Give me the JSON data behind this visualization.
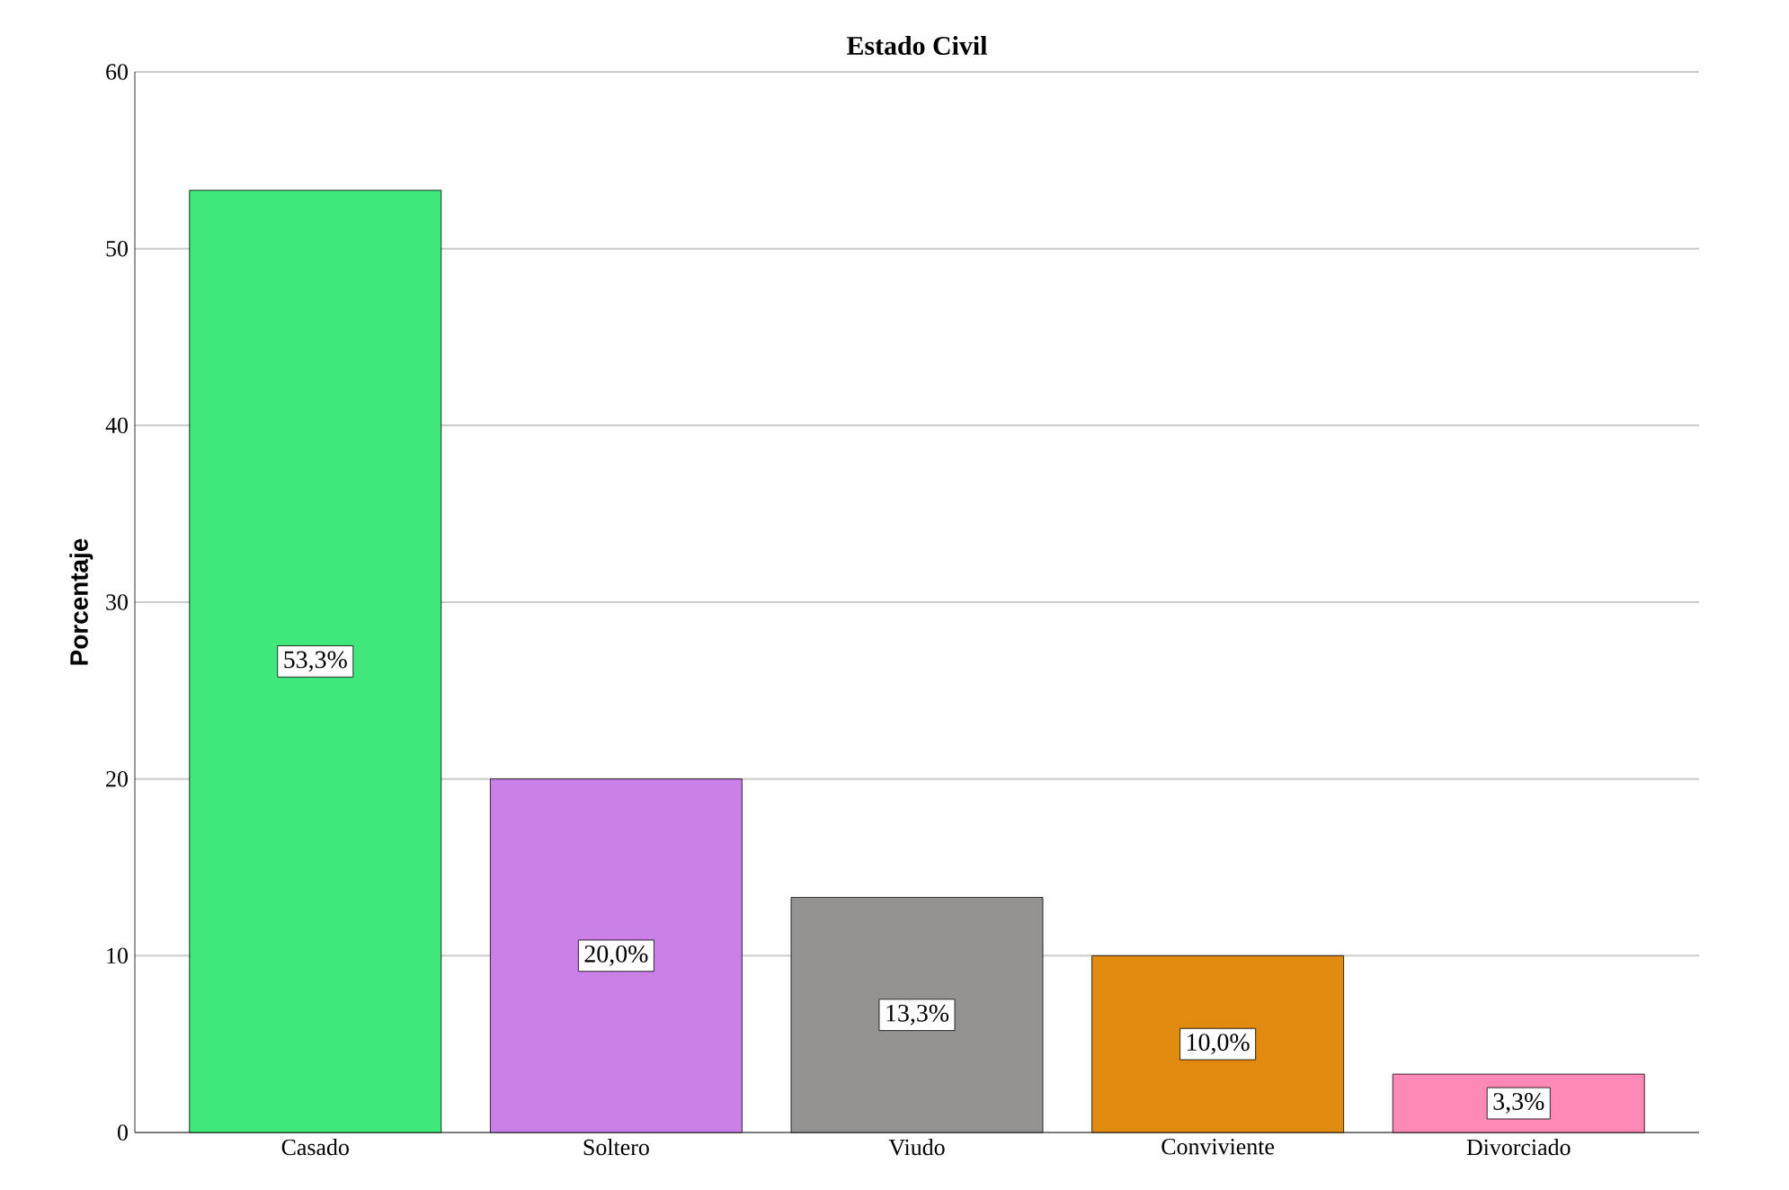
{
  "chart_data": {
    "type": "bar",
    "title": "Estado Civil",
    "ylabel": "Porcentaje",
    "categories": [
      "Casado",
      "Soltero",
      "Viudo",
      "Conviviente",
      "Divorciado"
    ],
    "values": [
      53.3,
      20.0,
      13.3,
      10.0,
      3.3
    ],
    "colors": [
      "#40e87c",
      "#cb80e8",
      "#959392",
      "#e08a10",
      "#ff88b4"
    ],
    "value_labels": [
      "53,3%",
      "20,0%",
      "13,3%",
      "10,0%",
      "3,3%"
    ],
    "ylim": [
      0,
      60
    ],
    "yticks": [
      0,
      10,
      20,
      30,
      40,
      50,
      60
    ],
    "grid": "y"
  }
}
